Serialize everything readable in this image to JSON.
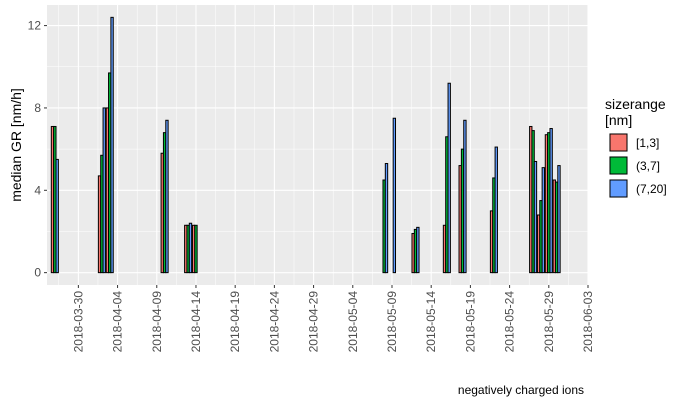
{
  "chart_data": {
    "type": "bar",
    "title": "",
    "xlabel": "",
    "ylabel": "median GR [nm/h]",
    "caption": "negatively charged ions",
    "ylim": [
      -0.6,
      13.0
    ],
    "xlim": [
      "2018-03-26",
      "2018-06-03"
    ],
    "y_ticks": [
      0,
      4,
      8,
      12
    ],
    "x_ticks": [
      "2018-03-30",
      "2018-04-04",
      "2018-04-09",
      "2018-04-14",
      "2018-04-19",
      "2018-04-24",
      "2018-04-29",
      "2018-05-04",
      "2018-05-09",
      "2018-05-14",
      "2018-05-19",
      "2018-05-24",
      "2018-05-29",
      "2018-06-03"
    ],
    "grid": true,
    "legend": {
      "title": "sizerange\n[nm]",
      "position": "right",
      "entries": [
        {
          "label": "[1,3]",
          "color": "#F8766D"
        },
        {
          "label": "(3,7]",
          "color": "#00BA38"
        },
        {
          "label": "(7,20]",
          "color": "#619CFF"
        }
      ]
    },
    "series": [
      {
        "name": "[1,3]",
        "color": "#F8766D",
        "points": [
          {
            "x": "2018-03-27",
            "y": 7.1
          },
          {
            "x": "2018-04-02",
            "y": 4.7
          },
          {
            "x": "2018-04-03",
            "y": 8.0
          },
          {
            "x": "2018-04-10",
            "y": 5.8
          },
          {
            "x": "2018-04-13",
            "y": 2.3
          },
          {
            "x": "2018-04-14",
            "y": 2.3
          },
          {
            "x": "2018-05-12",
            "y": 1.9
          },
          {
            "x": "2018-05-16",
            "y": 2.3
          },
          {
            "x": "2018-05-18",
            "y": 5.2
          },
          {
            "x": "2018-05-22",
            "y": 3.0
          },
          {
            "x": "2018-05-27",
            "y": 7.1
          },
          {
            "x": "2018-05-28",
            "y": 2.8
          },
          {
            "x": "2018-05-29",
            "y": 6.7
          },
          {
            "x": "2018-05-30",
            "y": 4.5
          }
        ]
      },
      {
        "name": "(3,7]",
        "color": "#00BA38",
        "points": [
          {
            "x": "2018-03-27",
            "y": 7.1
          },
          {
            "x": "2018-04-02",
            "y": 5.7
          },
          {
            "x": "2018-04-03",
            "y": 9.7
          },
          {
            "x": "2018-04-10",
            "y": 6.8
          },
          {
            "x": "2018-04-13",
            "y": 2.3
          },
          {
            "x": "2018-04-14",
            "y": 2.3
          },
          {
            "x": "2018-05-08",
            "y": 4.5
          },
          {
            "x": "2018-05-12",
            "y": 2.1
          },
          {
            "x": "2018-05-16",
            "y": 6.6
          },
          {
            "x": "2018-05-18",
            "y": 6.0
          },
          {
            "x": "2018-05-22",
            "y": 4.6
          },
          {
            "x": "2018-05-27",
            "y": 6.9
          },
          {
            "x": "2018-05-28",
            "y": 3.5
          },
          {
            "x": "2018-05-29",
            "y": 6.8
          },
          {
            "x": "2018-05-30",
            "y": 4.4
          }
        ]
      },
      {
        "name": "(7,20]",
        "color": "#619CFF",
        "points": [
          {
            "x": "2018-03-27",
            "y": 5.5
          },
          {
            "x": "2018-04-02",
            "y": 8.0
          },
          {
            "x": "2018-04-03",
            "y": 12.4
          },
          {
            "x": "2018-04-10",
            "y": 7.4
          },
          {
            "x": "2018-04-13",
            "y": 2.4
          },
          {
            "x": "2018-05-08",
            "y": 5.3
          },
          {
            "x": "2018-05-09",
            "y": 7.5
          },
          {
            "x": "2018-05-12",
            "y": 2.2
          },
          {
            "x": "2018-05-16",
            "y": 9.2
          },
          {
            "x": "2018-05-18",
            "y": 7.4
          },
          {
            "x": "2018-05-22",
            "y": 6.1
          },
          {
            "x": "2018-05-27",
            "y": 5.4
          },
          {
            "x": "2018-05-28",
            "y": 5.1
          },
          {
            "x": "2018-05-29",
            "y": 7.0
          },
          {
            "x": "2018-05-30",
            "y": 5.2
          }
        ]
      }
    ]
  }
}
